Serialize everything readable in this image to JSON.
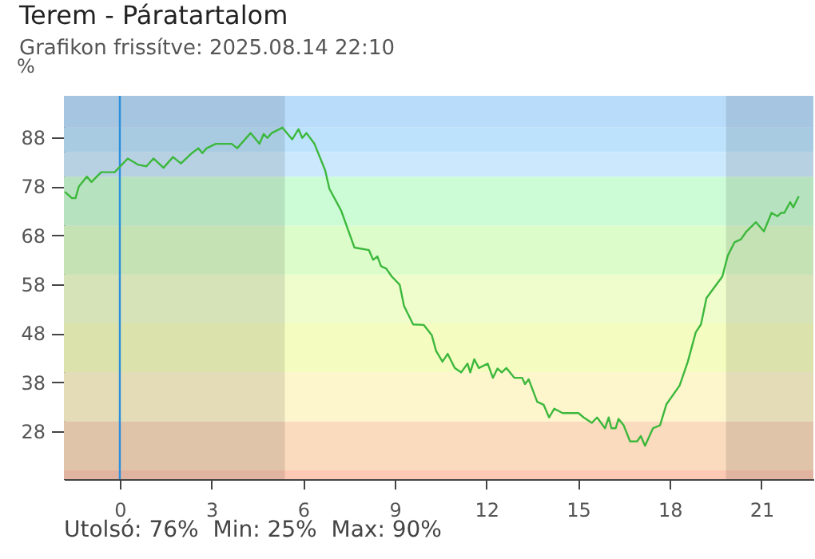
{
  "chart_data": {
    "type": "line",
    "title": "Terem - Páratartalom",
    "subtitle": "Grafikon frissítve: 2025.08.14 22:10",
    "ylabel": "%",
    "annotations": [
      "Utolsó: 76%  Min: 25%  Max: 90%"
    ],
    "xlim": [
      -1.83,
      22.7
    ],
    "xticks": [
      0,
      3,
      6,
      9,
      12,
      15,
      18,
      21
    ],
    "ylim": [
      18.2,
      96.5
    ],
    "yticks": [
      28,
      38,
      48,
      58,
      68,
      78,
      88
    ],
    "grid": false,
    "marker": "none",
    "line_style": "solid",
    "series": [
      {
        "color": "#3cb83c",
        "x": [
          -1.8,
          -1.57,
          -1.45,
          -1.34,
          -1.08,
          -0.93,
          -0.61,
          -0.17,
          0.26,
          0.61,
          0.87,
          1.1,
          1.43,
          1.74,
          2.0,
          2.36,
          2.57,
          2.7,
          2.84,
          3.14,
          3.66,
          3.84,
          4.28,
          4.57,
          4.71,
          4.83,
          4.97,
          5.32,
          5.64,
          5.85,
          5.97,
          6.11,
          6.37,
          6.72,
          6.86,
          7.24,
          7.68,
          8.15,
          8.29,
          8.43,
          8.55,
          8.72,
          8.9,
          9.16,
          9.3,
          9.6,
          9.95,
          10.21,
          10.35,
          10.56,
          10.73,
          10.96,
          11.17,
          11.38,
          11.47,
          11.6,
          11.75,
          12.04,
          12.21,
          12.36,
          12.5,
          12.65,
          12.91,
          13.17,
          13.26,
          13.38,
          13.66,
          13.87,
          14.05,
          14.22,
          14.49,
          15.01,
          15.18,
          15.45,
          15.62,
          15.88,
          16.0,
          16.09,
          16.23,
          16.32,
          16.49,
          16.7,
          16.93,
          17.05,
          17.19,
          17.45,
          17.68,
          17.89,
          18.32,
          18.59,
          18.85,
          19.02,
          19.2,
          19.46,
          19.72,
          19.9,
          20.12,
          20.33,
          20.51,
          20.82,
          21.08,
          21.33,
          21.52,
          21.64,
          21.75,
          21.94,
          22.04,
          22.22
        ],
        "values": [
          76.9,
          75.6,
          75.6,
          78,
          80,
          78.9,
          80.9,
          80.9,
          83.7,
          82.4,
          82.1,
          83.7,
          81.8,
          84,
          82.7,
          84.8,
          85.8,
          84.8,
          85.8,
          86.7,
          86.7,
          85.8,
          88.9,
          86.7,
          88.7,
          87.9,
          88.9,
          90,
          87.6,
          89.7,
          87.9,
          88.9,
          86.7,
          81.3,
          77.5,
          73.1,
          65.5,
          65,
          63,
          63.7,
          61.7,
          61.2,
          59.6,
          57.9,
          53.6,
          49.8,
          49.7,
          47.6,
          44.4,
          42.2,
          43.8,
          40.9,
          40,
          41.8,
          40,
          42.7,
          40.9,
          41.8,
          38.9,
          40.8,
          40,
          40.9,
          38.9,
          38.9,
          37.6,
          38.6,
          34,
          33.4,
          30.8,
          32.6,
          31.7,
          31.7,
          30.8,
          29.7,
          30.8,
          28.6,
          30.8,
          28.6,
          28.6,
          30.5,
          29.2,
          25.9,
          25.9,
          27,
          25,
          28.6,
          29.2,
          33.5,
          37.3,
          42.2,
          48.2,
          49.8,
          55.2,
          57.4,
          59.6,
          63.9,
          66.6,
          67.2,
          68.8,
          70.7,
          68.8,
          72.6,
          71.9,
          72.6,
          72.6,
          74.8,
          73.7,
          76
        ]
      }
    ],
    "ref_lines": [
      {
        "axis": "x",
        "value": 0,
        "color": "#2a8fdc"
      }
    ],
    "bands": [
      {
        "axis": "y",
        "from": 18.2,
        "to": 20,
        "color": "#fbc9b4"
      },
      {
        "axis": "y",
        "from": 20,
        "to": 30,
        "color": "#fadbbd"
      },
      {
        "axis": "y",
        "from": 30,
        "to": 40,
        "color": "#fdf5cc"
      },
      {
        "axis": "y",
        "from": 40,
        "to": 50,
        "color": "#f5fcc0"
      },
      {
        "axis": "y",
        "from": 50,
        "to": 60,
        "color": "#effccc"
      },
      {
        "axis": "y",
        "from": 60,
        "to": 70,
        "color": "#dcfcca"
      },
      {
        "axis": "y",
        "from": 70,
        "to": 80,
        "color": "#ccfcd5"
      },
      {
        "axis": "y",
        "from": 80,
        "to": 85,
        "color": "#cce8fc"
      },
      {
        "axis": "y",
        "from": 85,
        "to": 90,
        "color": "#bde3fc"
      },
      {
        "axis": "y",
        "from": 90,
        "to": 96.5,
        "color": "#b8dcfa"
      },
      {
        "axis": "x",
        "from": -1.83,
        "to": 5.4,
        "color": "#000000"
      },
      {
        "axis": "x",
        "from": 19.84,
        "to": 22.7,
        "color": "#000000"
      }
    ]
  }
}
